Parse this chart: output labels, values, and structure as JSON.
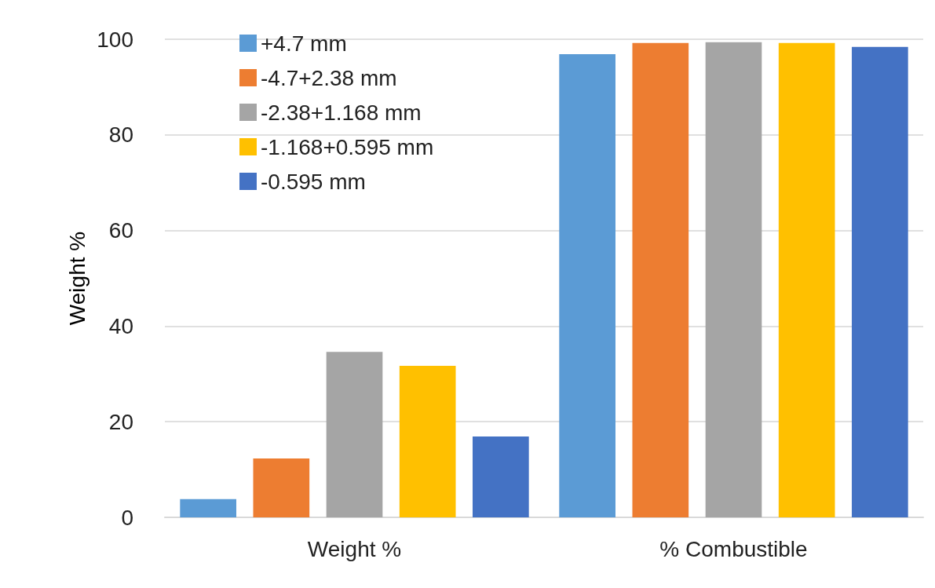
{
  "chart_data": {
    "type": "bar",
    "ylabel": "Weight %",
    "categories": [
      "Weight %",
      "% Combustible"
    ],
    "series": [
      {
        "name": "+4.7 mm",
        "color": "#5b9bd5",
        "values": [
          3.8,
          96.9
        ]
      },
      {
        "name": "-4.7+2.38 mm",
        "color": "#ed7d31",
        "values": [
          12.3,
          99.2
        ]
      },
      {
        "name": "-2.38+1.168 mm",
        "color": "#a5a5a5",
        "values": [
          34.6,
          99.4
        ]
      },
      {
        "name": "-1.168+0.595 mm",
        "color": "#ffc000",
        "values": [
          31.7,
          99.2
        ]
      },
      {
        "name": "-0.595 mm",
        "color": "#4472c4",
        "values": [
          16.9,
          98.4
        ]
      }
    ],
    "ylim": [
      0,
      100
    ],
    "yticks": [
      0,
      20,
      40,
      60,
      80,
      100
    ],
    "grid": "y",
    "legend": "top left"
  }
}
